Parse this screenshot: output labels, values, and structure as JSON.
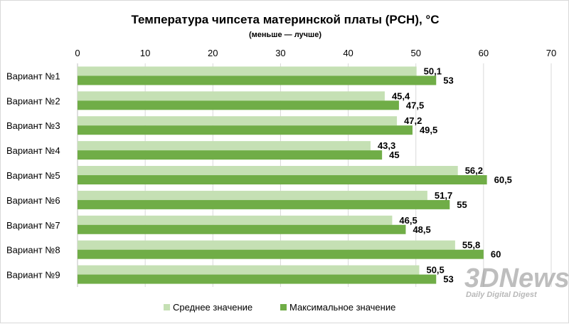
{
  "watermark": {
    "brand": "3DNews",
    "tagline": "Daily Digital Digest"
  },
  "chart_data": {
    "type": "bar",
    "orientation": "horizontal",
    "title": "Температура чипсета материнской платы (PCH), °C",
    "subtitle": "(меньше — лучше)",
    "categories": [
      "Вариант №1",
      "Вариант №2",
      "Вариант №3",
      "Вариант №4",
      "Вариант №5",
      "Вариант №6",
      "Вариант №7",
      "Вариант №8",
      "Вариант №9"
    ],
    "series": [
      {
        "name": "Среднее значение",
        "color": "#c5e0b4",
        "values": [
          50.1,
          45.4,
          47.2,
          43.3,
          56.2,
          51.7,
          46.5,
          55.8,
          50.5
        ],
        "labels": [
          "50,1",
          "45,4",
          "47,2",
          "43,3",
          "56,2",
          "51,7",
          "46,5",
          "55,8",
          "50,5"
        ]
      },
      {
        "name": "Максимальное значение",
        "color": "#70ad47",
        "values": [
          53,
          47.5,
          49.5,
          45,
          60.5,
          55,
          48.5,
          60,
          53
        ],
        "labels": [
          "53",
          "47,5",
          "49,5",
          "45",
          "60,5",
          "55",
          "48,5",
          "60",
          "53"
        ]
      }
    ],
    "xlim": [
      0,
      70
    ],
    "xticks": [
      "0",
      "10",
      "20",
      "30",
      "40",
      "50",
      "60",
      "70"
    ],
    "xtick_values": [
      0,
      10,
      20,
      30,
      40,
      50,
      60,
      70
    ],
    "axis_position": "top",
    "grid": true,
    "legend_position": "bottom"
  }
}
